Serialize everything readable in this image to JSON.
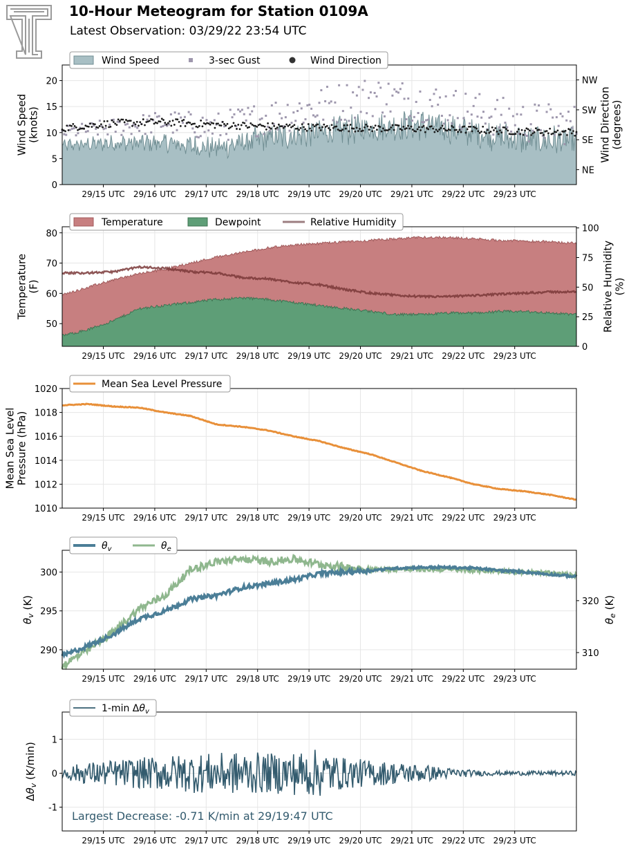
{
  "header": {
    "title": "10-Hour Meteogram for Station 0109A",
    "subtitle": "Latest Observation: 03/29/22 23:54 UTC"
  },
  "logo": {
    "icon": "texas-tech-double-t-logo-icon",
    "color": "#999999"
  },
  "colors": {
    "wind_fill": "#a8bfc4",
    "wind_line": "#708e93",
    "gust": "#9e97ad",
    "wind_dir": "#1a1a1a",
    "temperature_fill": "#c77f80",
    "temperature_line": "#a05a5b",
    "dewpoint_fill": "#5e9e77",
    "dewpoint_line": "#3f7352",
    "rh_line": "#7a3838",
    "rh_legend": "#9c7e80",
    "pressure": "#e8903a",
    "theta_v": "#4b7e97",
    "theta_e": "#8fb78e",
    "delta": "#335b6e",
    "grid": "#e6e6e6"
  },
  "chart_data": [
    {
      "type": "area",
      "id": "wind",
      "ylabel": "Wind Speed\n(knots)",
      "ylabel_lines": [
        "Wind Speed",
        "(knots)"
      ],
      "ylabel_right_lines": [
        "Wind Direction",
        "(degrees)"
      ],
      "ylim": [
        0,
        23
      ],
      "yticks": [
        0,
        5,
        10,
        15,
        20
      ],
      "right_yticks": [
        "NE",
        "SE",
        "SW",
        "NW"
      ],
      "right_ytick_positions_deg": [
        45,
        135,
        225,
        315
      ],
      "right_ylim_deg": [
        0,
        360
      ],
      "legend": [
        "Wind Speed",
        "3-sec Gust",
        "Wind Direction"
      ],
      "x_hours": [
        0,
        10
      ],
      "xticks": [
        "29/15 UTC",
        "29/16 UTC",
        "29/17 UTC",
        "29/18 UTC",
        "29/19 UTC",
        "29/20 UTC",
        "29/21 UTC",
        "29/22 UTC",
        "29/23 UTC"
      ],
      "xtick_hours": [
        0.8,
        1.8,
        2.8,
        3.8,
        4.8,
        5.8,
        6.8,
        7.8,
        8.8
      ],
      "grid": true,
      "series": [
        {
          "name": "Wind Speed",
          "x": [
            0,
            1,
            2,
            3,
            4,
            5,
            6,
            7,
            8,
            9,
            10
          ],
          "values": [
            7.5,
            8,
            8,
            7,
            9,
            10,
            11,
            11.5,
            10,
            8.5,
            8.5
          ]
        },
        {
          "name": "3-sec Gust",
          "x": [
            0,
            1,
            2,
            3,
            4,
            5,
            6,
            7,
            8,
            9,
            10
          ],
          "values": [
            10,
            11,
            12,
            11,
            13,
            15,
            17,
            16,
            14,
            12,
            11.5
          ]
        },
        {
          "name": "Wind Direction",
          "x": [
            0,
            1,
            2,
            3,
            4,
            5,
            6,
            7,
            8,
            9,
            10
          ],
          "values_deg": [
            170,
            185,
            188,
            180,
            175,
            172,
            170,
            168,
            165,
            160,
            158
          ]
        }
      ]
    },
    {
      "type": "area",
      "id": "thermo",
      "ylabel_lines": [
        "Temperature",
        "(F)"
      ],
      "ylabel_right_lines": [
        "Relative Humidity",
        "(%)"
      ],
      "ylim": [
        42.5,
        82
      ],
      "yticks": [
        50,
        60,
        70,
        80
      ],
      "right_ylim": [
        0,
        101
      ],
      "right_yticks": [
        0,
        25,
        50,
        75,
        100
      ],
      "legend": [
        "Temperature",
        "Dewpoint",
        "Relative Humidity"
      ],
      "grid": true,
      "series": [
        {
          "name": "Temperature",
          "x": [
            0,
            0.5,
            1,
            1.5,
            2,
            2.5,
            3,
            3.5,
            4,
            4.5,
            5,
            5.5,
            6,
            6.5,
            7,
            7.5,
            8,
            8.5,
            9,
            9.5,
            10
          ],
          "values": [
            59.5,
            62,
            64.5,
            66.5,
            68,
            70,
            72,
            73.5,
            75,
            76,
            76.5,
            77,
            77.5,
            78,
            78.5,
            78.5,
            78,
            77.5,
            77.3,
            77,
            76.5
          ]
        },
        {
          "name": "Dewpoint",
          "x": [
            0,
            0.5,
            1,
            1.5,
            2,
            2.5,
            3,
            3.5,
            4,
            4.5,
            5,
            5.5,
            6,
            6.5,
            7,
            7.5,
            8,
            8.5,
            9,
            9.5,
            10
          ],
          "values": [
            46,
            48,
            51,
            55,
            56,
            57,
            58,
            58.5,
            58,
            57,
            56,
            55,
            54,
            53,
            53,
            53.5,
            53.5,
            54,
            54,
            53.5,
            53
          ]
        },
        {
          "name": "Relative Humidity",
          "x": [
            0,
            0.5,
            1,
            1.5,
            2,
            2.5,
            3,
            3.5,
            4,
            4.5,
            5,
            5.5,
            6,
            6.5,
            7,
            7.5,
            8,
            8.5,
            9,
            9.5,
            10
          ],
          "values": [
            62,
            62,
            63,
            67,
            66,
            63,
            62,
            58,
            57,
            54,
            52,
            48,
            45,
            43,
            42,
            42,
            43,
            44,
            45,
            46,
            46
          ]
        }
      ]
    },
    {
      "type": "line",
      "id": "pressure",
      "ylabel_lines": [
        "Mean Sea Level",
        "Pressure (hPa)"
      ],
      "ylim": [
        1010,
        1020
      ],
      "yticks": [
        1010,
        1012,
        1014,
        1016,
        1018,
        1020
      ],
      "legend": [
        "Mean Sea Level Pressure"
      ],
      "grid": true,
      "series": [
        {
          "name": "Mean Sea Level Pressure",
          "x": [
            0,
            0.5,
            1,
            1.5,
            2,
            2.5,
            3,
            3.5,
            4,
            4.5,
            5,
            5.5,
            6,
            6.5,
            7,
            7.5,
            8,
            8.5,
            9,
            9.5,
            10
          ],
          "values": [
            1018.6,
            1018.7,
            1018.5,
            1018.4,
            1018.0,
            1017.7,
            1017.0,
            1016.8,
            1016.5,
            1016.0,
            1015.6,
            1015.0,
            1014.5,
            1013.8,
            1013.1,
            1012.6,
            1012.0,
            1011.6,
            1011.4,
            1011.1,
            1010.7
          ]
        }
      ]
    },
    {
      "type": "line",
      "id": "theta",
      "ylabel_left": "θv (K)",
      "ylabel_right": "θe (K)",
      "ylim": [
        287.5,
        302.8
      ],
      "yticks": [
        290,
        295,
        300
      ],
      "right_ylim": [
        306.8,
        329.7
      ],
      "right_yticks": [
        310,
        320
      ],
      "legend": [
        "θv",
        "θe"
      ],
      "grid": true,
      "series": [
        {
          "name": "θv",
          "x": [
            0,
            0.5,
            1,
            1.5,
            2,
            2.5,
            3,
            3.5,
            4,
            4.5,
            5,
            5.5,
            6,
            6.5,
            7,
            7.5,
            8,
            8.5,
            9,
            9.5,
            10
          ],
          "values": [
            289.2,
            290.5,
            292.0,
            294.0,
            295.0,
            296.5,
            297.0,
            298.0,
            298.5,
            299.0,
            299.8,
            300.0,
            300.2,
            300.5,
            300.6,
            300.6,
            300.5,
            300.2,
            300.0,
            299.7,
            299.4
          ]
        },
        {
          "name": "θe",
          "x": [
            0,
            0.5,
            1,
            1.5,
            2,
            2.5,
            3,
            3.5,
            4,
            4.5,
            5,
            5.5,
            6,
            6.5,
            7,
            7.5,
            8,
            8.5,
            9,
            9.5,
            10
          ],
          "values": [
            307.5,
            310.5,
            314.0,
            318.5,
            321.0,
            326.0,
            327.5,
            328.0,
            327.5,
            328.0,
            327.0,
            326.5,
            326.0,
            326.0,
            326.0,
            326.0,
            325.8,
            325.7,
            325.5,
            325.3,
            324.8
          ]
        }
      ]
    },
    {
      "type": "line",
      "id": "delta",
      "ylabel_left": "Δθv (K/min)",
      "ylim": [
        -1.7,
        1.8
      ],
      "yticks": [
        -1,
        0,
        1
      ],
      "legend": [
        "1-min Δθv"
      ],
      "annotation": "Largest Decrease: -0.71 K/min at 29/19:47 UTC",
      "grid": true,
      "series": [
        {
          "name": "1-min Δθv",
          "x": [
            0,
            0.5,
            1,
            1.5,
            2,
            2.5,
            3,
            3.5,
            4,
            4.5,
            5,
            5.5,
            6,
            6.5,
            7,
            7.5,
            8,
            8.5,
            9,
            9.5,
            10
          ],
          "amplitude": [
            0.15,
            0.25,
            0.3,
            0.35,
            0.4,
            0.45,
            0.45,
            0.5,
            0.45,
            0.5,
            0.55,
            0.35,
            0.3,
            0.25,
            0.2,
            0.12,
            0.07,
            0.05,
            0.05,
            0.05,
            0.05
          ]
        }
      ]
    }
  ]
}
